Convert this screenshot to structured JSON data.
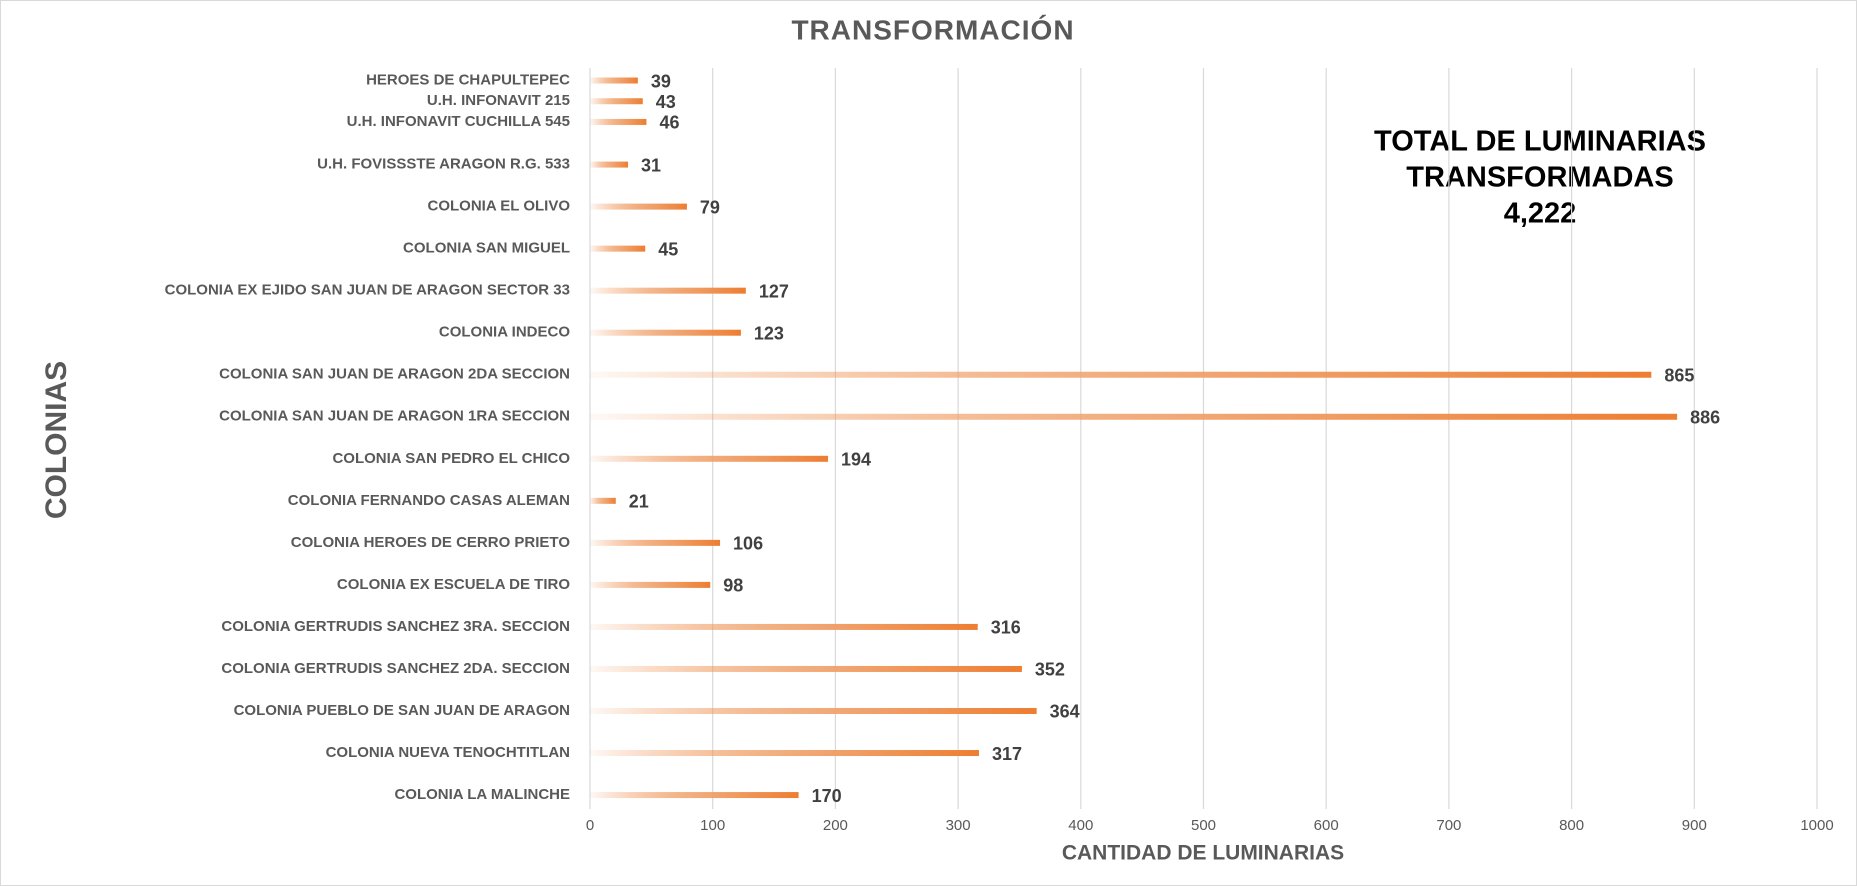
{
  "chart_data": {
    "type": "barh",
    "title": "TRANSFORMACIÓN",
    "xlabel": "CANTIDAD DE LUMINARIAS",
    "ylabel": "COLONIAS",
    "annotation": [
      "TOTAL DE LUMINARIAS",
      "TRANSFORMADAS",
      "4,222"
    ],
    "categories": [
      "HEROES DE CHAPULTEPEC",
      "U.H. INFONAVIT 215",
      "U.H. INFONAVIT CUCHILLA 545",
      "U.H. FOVISSSTE ARAGON R.G. 533",
      "COLONIA EL OLIVO",
      "COLONIA SAN MIGUEL",
      "COLONIA EX EJIDO SAN JUAN DE ARAGON SECTOR 33",
      "COLONIA INDECO",
      "COLONIA SAN JUAN DE ARAGON 2DA SECCION",
      "COLONIA SAN JUAN DE ARAGON 1RA SECCION",
      "COLONIA SAN PEDRO EL CHICO",
      "COLONIA FERNANDO CASAS ALEMAN",
      "COLONIA HEROES DE CERRO PRIETO",
      "COLONIA EX ESCUELA DE TIRO",
      "COLONIA GERTRUDIS SANCHEZ 3RA. SECCION",
      "COLONIA GERTRUDIS SANCHEZ 2DA. SECCION",
      "COLONIA PUEBLO DE SAN JUAN DE ARAGON",
      "COLONIA NUEVA TENOCHTITLAN",
      "COLONIA LA MALINCHE"
    ],
    "values": [
      39,
      43,
      46,
      31,
      79,
      45,
      127,
      123,
      865,
      886,
      194,
      21,
      106,
      98,
      316,
      352,
      364,
      317,
      170
    ],
    "color": "#ed7d31",
    "xlim": [
      0,
      1000
    ],
    "xticks": [
      0,
      100,
      200,
      300,
      400,
      500,
      600,
      700,
      800,
      900,
      1000
    ],
    "grid": true
  }
}
